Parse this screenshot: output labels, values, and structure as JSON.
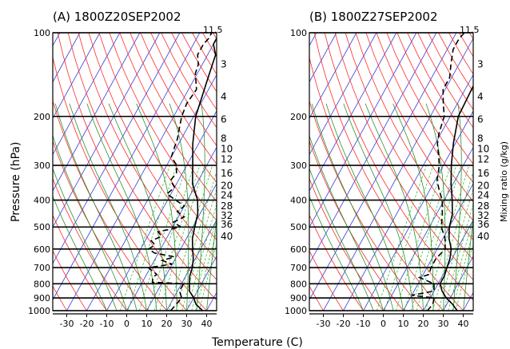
{
  "figure": {
    "ylabel": "Pressure (hPa)",
    "xlabel": "Temperature (C)",
    "right_label": "Mixing ratio (g/kg)"
  },
  "colors": {
    "dry_adiabat": "#ff2a2a",
    "moist_adiabat": "#2f8f2f",
    "mixing_ratio_line": "#22bb22",
    "isotherm": "#3a3adf",
    "profiles": "#000000"
  },
  "chart_data": [
    {
      "type": "line",
      "title": "(A)  1800Z20SEP2002",
      "corner_label": "11.5",
      "x_axis": {
        "ticks": [
          -30,
          -20,
          -10,
          0,
          10,
          20,
          30,
          40
        ],
        "xlim": [
          -37,
          45
        ]
      },
      "y_axis": {
        "scale": "log",
        "ticks": [
          100,
          200,
          300,
          400,
          500,
          600,
          700,
          800,
          900,
          1000
        ],
        "ylim": [
          1000,
          100
        ]
      },
      "mixing_ratio_labels": [
        "3",
        "4",
        "6",
        "8",
        "10",
        "12",
        "16",
        "20",
        "24",
        "28",
        "32",
        "36",
        "40"
      ],
      "series": [
        {
          "style": "solid",
          "points": [
            {
              "p": 1000,
              "t": 38
            },
            {
              "p": 950,
              "t": 33
            },
            {
              "p": 900,
              "t": 30
            },
            {
              "p": 850,
              "t": 26
            },
            {
              "p": 800,
              "t": 24
            },
            {
              "p": 750,
              "t": 22
            },
            {
              "p": 700,
              "t": 21
            },
            {
              "p": 650,
              "t": 19
            },
            {
              "p": 600,
              "t": 16
            },
            {
              "p": 550,
              "t": 13
            },
            {
              "p": 500,
              "t": 11
            },
            {
              "p": 450,
              "t": 9
            },
            {
              "p": 400,
              "t": 5
            },
            {
              "p": 350,
              "t": -2
            },
            {
              "p": 300,
              "t": -7
            },
            {
              "p": 250,
              "t": -13
            },
            {
              "p": 200,
              "t": -19
            },
            {
              "p": 150,
              "t": -23
            },
            {
              "p": 120,
              "t": -26
            },
            {
              "p": 110,
              "t": -30
            },
            {
              "p": 105,
              "t": -30
            },
            {
              "p": 100,
              "t": -29
            }
          ]
        },
        {
          "style": "dashed",
          "points": [
            {
              "p": 1000,
              "t": 22
            },
            {
              "p": 950,
              "t": 23
            },
            {
              "p": 900,
              "t": 24
            },
            {
              "p": 850,
              "t": 21
            },
            {
              "p": 800,
              "t": 21
            },
            {
              "p": 790,
              "t": 5
            },
            {
              "p": 760,
              "t": 4
            },
            {
              "p": 740,
              "t": 5
            },
            {
              "p": 720,
              "t": 2
            },
            {
              "p": 700,
              "t": -1
            },
            {
              "p": 680,
              "t": 10
            },
            {
              "p": 660,
              "t": 4
            },
            {
              "p": 640,
              "t": 9
            },
            {
              "p": 620,
              "t": -2
            },
            {
              "p": 600,
              "t": -6
            },
            {
              "p": 580,
              "t": -4
            },
            {
              "p": 560,
              "t": -7
            },
            {
              "p": 540,
              "t": -3
            },
            {
              "p": 520,
              "t": -6
            },
            {
              "p": 500,
              "t": 4
            },
            {
              "p": 480,
              "t": -1
            },
            {
              "p": 460,
              "t": 3
            },
            {
              "p": 440,
              "t": -2
            },
            {
              "p": 420,
              "t": 0
            },
            {
              "p": 400,
              "t": -6
            },
            {
              "p": 380,
              "t": -12
            },
            {
              "p": 360,
              "t": -10
            },
            {
              "p": 340,
              "t": -14
            },
            {
              "p": 320,
              "t": -13
            },
            {
              "p": 300,
              "t": -15
            },
            {
              "p": 280,
              "t": -20
            },
            {
              "p": 260,
              "t": -21
            },
            {
              "p": 240,
              "t": -22
            },
            {
              "p": 220,
              "t": -24
            },
            {
              "p": 200,
              "t": -26
            },
            {
              "p": 180,
              "t": -27
            },
            {
              "p": 160,
              "t": -26
            },
            {
              "p": 140,
              "t": -31
            },
            {
              "p": 130,
              "t": -32
            },
            {
              "p": 120,
              "t": -35
            },
            {
              "p": 110,
              "t": -35
            },
            {
              "p": 105,
              "t": -34
            },
            {
              "p": 100,
              "t": -34
            }
          ]
        }
      ]
    },
    {
      "type": "line",
      "title": "(B)  1800Z27SEP2002",
      "corner_label": "11.5",
      "x_axis": {
        "ticks": [
          -30,
          -20,
          -10,
          0,
          10,
          20,
          30,
          40
        ],
        "xlim": [
          -37,
          45
        ]
      },
      "y_axis": {
        "scale": "log",
        "ticks": [
          100,
          200,
          300,
          400,
          500,
          600,
          700,
          800,
          900,
          1000
        ],
        "ylim": [
          1000,
          100
        ]
      },
      "mixing_ratio_labels": [
        "3",
        "4",
        "6",
        "8",
        "10",
        "12",
        "16",
        "20",
        "24",
        "28",
        "32",
        "36",
        "40"
      ],
      "series": [
        {
          "style": "solid",
          "points": [
            {
              "p": 1000,
              "t": 37
            },
            {
              "p": 950,
              "t": 33
            },
            {
              "p": 900,
              "t": 28
            },
            {
              "p": 850,
              "t": 24
            },
            {
              "p": 800,
              "t": 21
            },
            {
              "p": 750,
              "t": 21
            },
            {
              "p": 700,
              "t": 20
            },
            {
              "p": 650,
              "t": 19
            },
            {
              "p": 600,
              "t": 17
            },
            {
              "p": 550,
              "t": 13
            },
            {
              "p": 500,
              "t": 10
            },
            {
              "p": 450,
              "t": 8
            },
            {
              "p": 400,
              "t": 4
            },
            {
              "p": 350,
              "t": -1
            },
            {
              "p": 300,
              "t": -6
            },
            {
              "p": 250,
              "t": -11
            },
            {
              "p": 200,
              "t": -16
            },
            {
              "p": 150,
              "t": -17
            },
            {
              "p": 130,
              "t": -18
            },
            {
              "p": 115,
              "t": -20
            },
            {
              "p": 105,
              "t": -20
            },
            {
              "p": 100,
              "t": -21
            }
          ]
        },
        {
          "style": "dashed",
          "points": [
            {
              "p": 1000,
              "t": 22
            },
            {
              "p": 950,
              "t": 23
            },
            {
              "p": 900,
              "t": 22
            },
            {
              "p": 880,
              "t": 10
            },
            {
              "p": 850,
              "t": 20
            },
            {
              "p": 800,
              "t": 18
            },
            {
              "p": 760,
              "t": 9
            },
            {
              "p": 740,
              "t": 13
            },
            {
              "p": 700,
              "t": 12
            },
            {
              "p": 650,
              "t": 12
            },
            {
              "p": 600,
              "t": 14
            },
            {
              "p": 550,
              "t": 11
            },
            {
              "p": 500,
              "t": 6
            },
            {
              "p": 450,
              "t": 3
            },
            {
              "p": 400,
              "t": -1
            },
            {
              "p": 370,
              "t": -5
            },
            {
              "p": 340,
              "t": -9
            },
            {
              "p": 300,
              "t": -12
            },
            {
              "p": 270,
              "t": -16
            },
            {
              "p": 250,
              "t": -19
            },
            {
              "p": 230,
              "t": -21
            },
            {
              "p": 215,
              "t": -22
            },
            {
              "p": 200,
              "t": -23
            },
            {
              "p": 180,
              "t": -27
            },
            {
              "p": 160,
              "t": -31
            },
            {
              "p": 145,
              "t": -31
            },
            {
              "p": 130,
              "t": -34
            },
            {
              "p": 115,
              "t": -37
            },
            {
              "p": 105,
              "t": -37
            },
            {
              "p": 100,
              "t": -36
            }
          ]
        }
      ]
    }
  ]
}
